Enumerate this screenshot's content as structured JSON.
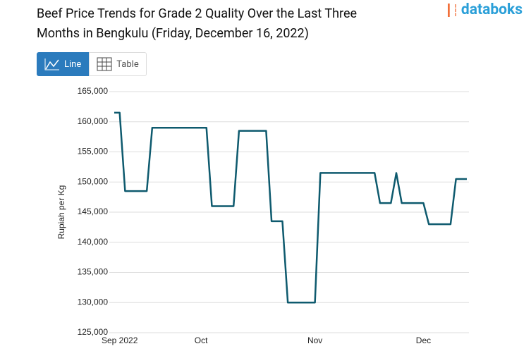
{
  "ui": {
    "brand": "databoks",
    "tabs": [
      "Line",
      "Table"
    ]
  },
  "chart_data": {
    "type": "line",
    "title": "Beef Price Trends for Grade 2 Quality Over the Last Three Months in Bengkulu (Friday, December 16, 2022)",
    "y_label": "Rupiah per Kg",
    "categories": [
      null,
      "Sep 2022",
      null,
      null,
      null,
      null,
      null,
      null,
      null,
      null,
      null,
      null,
      null,
      null,
      null,
      null,
      "Oct",
      null,
      null,
      null,
      null,
      null,
      null,
      null,
      null,
      null,
      null,
      null,
      null,
      null,
      null,
      null,
      null,
      null,
      null,
      null,
      null,
      "Nov",
      null,
      null,
      null,
      null,
      null,
      null,
      null,
      null,
      null,
      null,
      null,
      null,
      null,
      null,
      null,
      null,
      null,
      null,
      null,
      "Dec",
      null,
      null,
      null,
      null,
      null,
      null,
      null,
      null
    ],
    "values": [
      161500,
      161500,
      148500,
      148500,
      148500,
      148500,
      148500,
      159000,
      159000,
      159000,
      159000,
      159000,
      159000,
      159000,
      159000,
      159000,
      159000,
      159000,
      146000,
      146000,
      146000,
      146000,
      146000,
      158500,
      158500,
      158500,
      158500,
      158500,
      158500,
      143500,
      143500,
      143500,
      130000,
      130000,
      130000,
      130000,
      130000,
      130000,
      151500,
      151500,
      151500,
      151500,
      151500,
      151500,
      151500,
      151500,
      151500,
      151500,
      151500,
      146500,
      146500,
      146500,
      151500,
      146500,
      146500,
      146500,
      146500,
      146500,
      143000,
      143000,
      143000,
      143000,
      143000,
      150500,
      150500,
      150500
    ],
    "color": "#0e5a6e",
    "ylim": [
      125000,
      165000
    ],
    "yticks": [
      {
        "value": 125000,
        "label": "125,000"
      },
      {
        "value": 130000,
        "label": "130,000"
      },
      {
        "value": 135000,
        "label": "135,000"
      },
      {
        "value": 140000,
        "label": "140,000"
      },
      {
        "value": 145000,
        "label": "145,000"
      },
      {
        "value": 150000,
        "label": "150,000"
      },
      {
        "value": 155000,
        "label": "155,000"
      },
      {
        "value": 160000,
        "label": "160,000"
      },
      {
        "value": 165000,
        "label": "165,000"
      }
    ],
    "grid": true
  }
}
